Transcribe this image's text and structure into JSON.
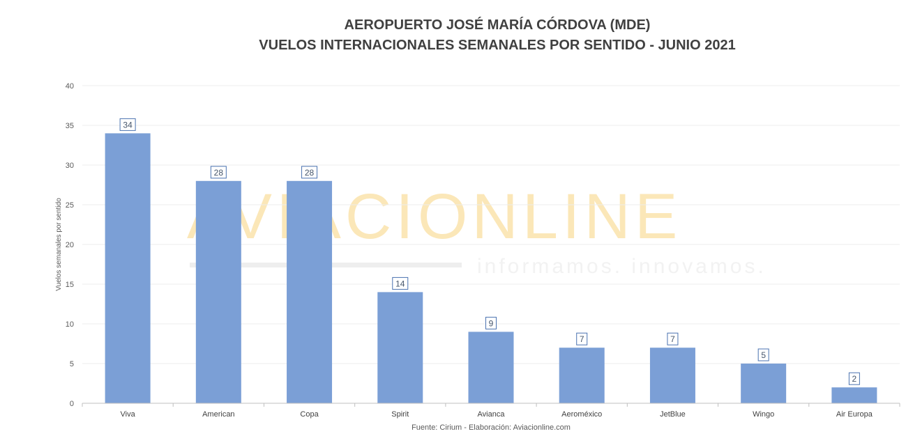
{
  "colors": {
    "bar": "#7b9fd6",
    "grid": "#ececec",
    "axis": "#bfbfbf",
    "label_box_border": "#4a72b0"
  },
  "watermark": {
    "brand": "AVIACIONLINE",
    "tagline": "informamos. innovamos."
  },
  "chart_data": {
    "type": "bar",
    "title": [
      "AEROPUERTO JOSÉ MARÍA CÓRDOVA (MDE)",
      "VUELOS  INTERNACIONALES SEMANALES POR SENTIDO - JUNIO 2021"
    ],
    "xlabel": "",
    "ylabel": "Vuelos semanales por sentido",
    "ylim": [
      0,
      40
    ],
    "yticks": [
      0,
      5,
      10,
      15,
      20,
      25,
      30,
      35,
      40
    ],
    "categories": [
      "Viva",
      "American",
      "Copa",
      "Spirit",
      "Avianca",
      "Aeroméxico",
      "JetBlue",
      "Wingo",
      "Air Europa"
    ],
    "values": [
      34,
      28,
      28,
      14,
      9,
      7,
      7,
      5,
      2
    ],
    "grid": true,
    "legend": "none",
    "source": "Fuente: Cirium - Elaboración: Aviacionline.com"
  }
}
